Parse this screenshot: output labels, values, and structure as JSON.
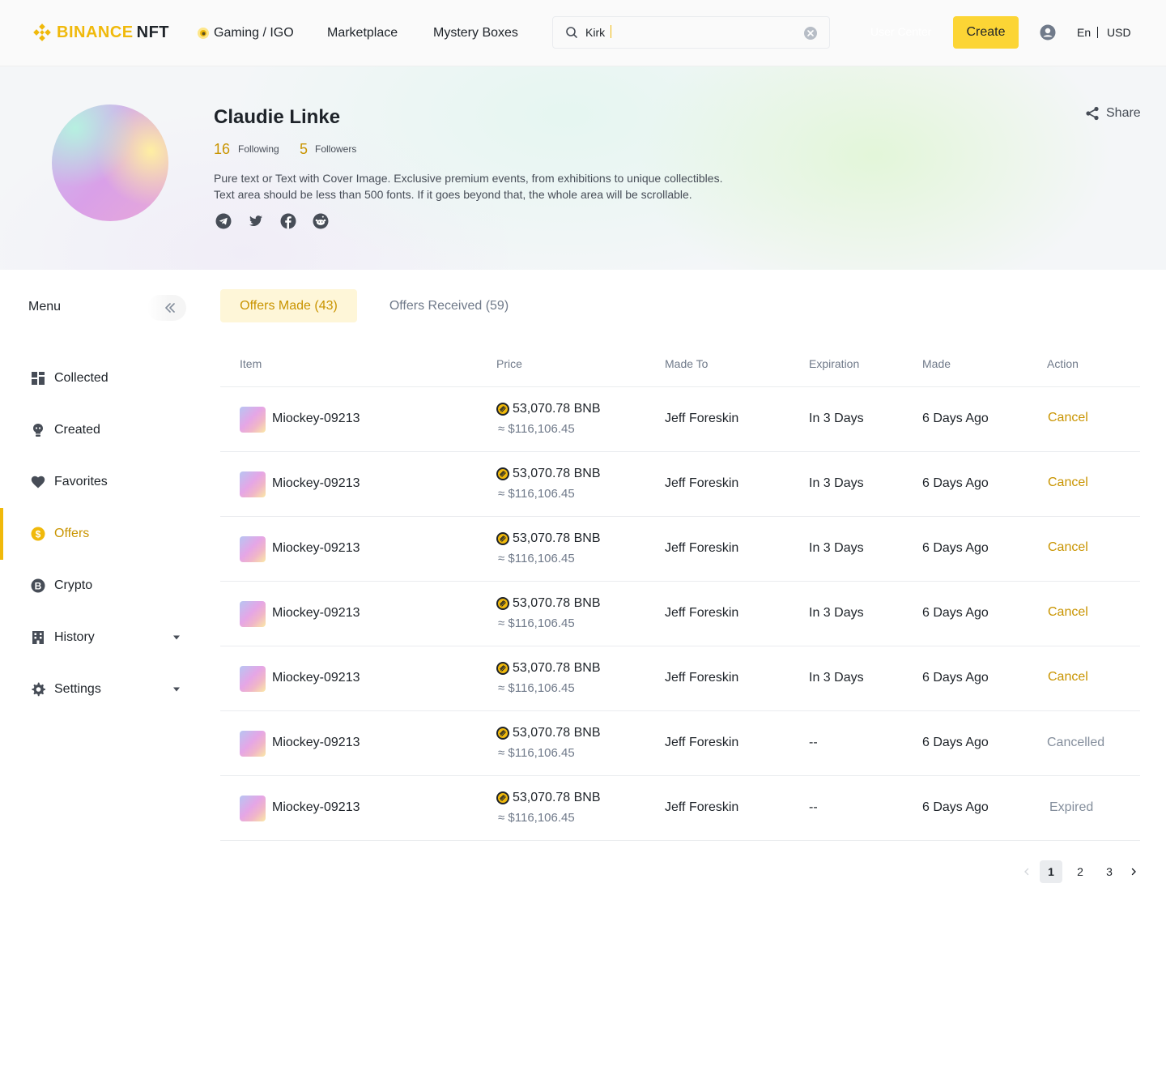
{
  "header": {
    "logo_brand": "BINANCE",
    "logo_product": "NFT",
    "nav": [
      {
        "label": "Gaming / IGO"
      },
      {
        "label": "Marketplace"
      },
      {
        "label": "Mystery Boxes"
      }
    ],
    "search": {
      "value": "Kirk",
      "placeholder": ""
    },
    "user_center_label": "User Center",
    "create_label": "Create",
    "language": "En",
    "currency": "USD"
  },
  "profile": {
    "name": "Claudie Linke",
    "following_count": "16",
    "following_label": "Following",
    "followers_count": "5",
    "followers_label": "Followers",
    "bio_line1": "Pure text or Text with Cover Image. Exclusive premium events, from exhibitions to unique collectibles.",
    "bio_line2": "Text area should be less than 500 fonts. If it goes beyond that, the whole area will be scrollable.",
    "socials": [
      "telegram-icon",
      "twitter-icon",
      "facebook-icon",
      "reddit-icon"
    ],
    "share_label": "Share"
  },
  "sidebar": {
    "title": "Menu",
    "items": [
      {
        "label": "Collected",
        "icon": "grid-icon"
      },
      {
        "label": "Created",
        "icon": "bulb-icon"
      },
      {
        "label": "Favorites",
        "icon": "heart-icon"
      },
      {
        "label": "Offers",
        "icon": "dollar-coin-icon",
        "active": true
      },
      {
        "label": "Crypto",
        "icon": "bitcoin-icon"
      },
      {
        "label": "History",
        "icon": "building-icon",
        "expandable": true
      },
      {
        "label": "Settings",
        "icon": "gear-icon",
        "expandable": true
      }
    ]
  },
  "tabs": [
    {
      "label": "Offers Made (43)",
      "active": true
    },
    {
      "label": "Offers Received (59)",
      "active": false
    }
  ],
  "table": {
    "columns": [
      "Item",
      "Price",
      "Made To",
      "Expiration",
      "Made",
      "Action"
    ],
    "rows": [
      {
        "item": "Miockey-09213",
        "price": "53,070.78 BNB",
        "usd": "≈ $116,106.45",
        "made_to": "Jeff Foreskin",
        "expiration": "In 3 Days",
        "made": "6 Days Ago",
        "action": "Cancel",
        "action_type": "cancel"
      },
      {
        "item": "Miockey-09213",
        "price": "53,070.78 BNB",
        "usd": "≈ $116,106.45",
        "made_to": "Jeff Foreskin",
        "expiration": "In 3 Days",
        "made": "6 Days Ago",
        "action": "Cancel",
        "action_type": "cancel"
      },
      {
        "item": "Miockey-09213",
        "price": "53,070.78 BNB",
        "usd": "≈ $116,106.45",
        "made_to": "Jeff Foreskin",
        "expiration": "In 3 Days",
        "made": "6 Days Ago",
        "action": "Cancel",
        "action_type": "cancel"
      },
      {
        "item": "Miockey-09213",
        "price": "53,070.78 BNB",
        "usd": "≈ $116,106.45",
        "made_to": "Jeff Foreskin",
        "expiration": "In 3 Days",
        "made": "6 Days Ago",
        "action": "Cancel",
        "action_type": "cancel"
      },
      {
        "item": "Miockey-09213",
        "price": "53,070.78 BNB",
        "usd": "≈ $116,106.45",
        "made_to": "Jeff Foreskin",
        "expiration": "In 3 Days",
        "made": "6 Days Ago",
        "action": "Cancel",
        "action_type": "cancel"
      },
      {
        "item": "Miockey-09213",
        "price": "53,070.78 BNB",
        "usd": "≈ $116,106.45",
        "made_to": "Jeff Foreskin",
        "expiration": "--",
        "made": "6 Days Ago",
        "action": "Cancelled",
        "action_type": "static"
      },
      {
        "item": "Miockey-09213",
        "price": "53,070.78 BNB",
        "usd": "≈ $116,106.45",
        "made_to": "Jeff Foreskin",
        "expiration": "--",
        "made": "6 Days Ago",
        "action": "Expired",
        "action_type": "static"
      }
    ]
  },
  "pagination": {
    "pages": [
      "1",
      "2",
      "3"
    ],
    "current": "1"
  },
  "colors": {
    "brand": "#f0b90b",
    "accent_text": "#c99400",
    "create_button": "#fcd535"
  }
}
